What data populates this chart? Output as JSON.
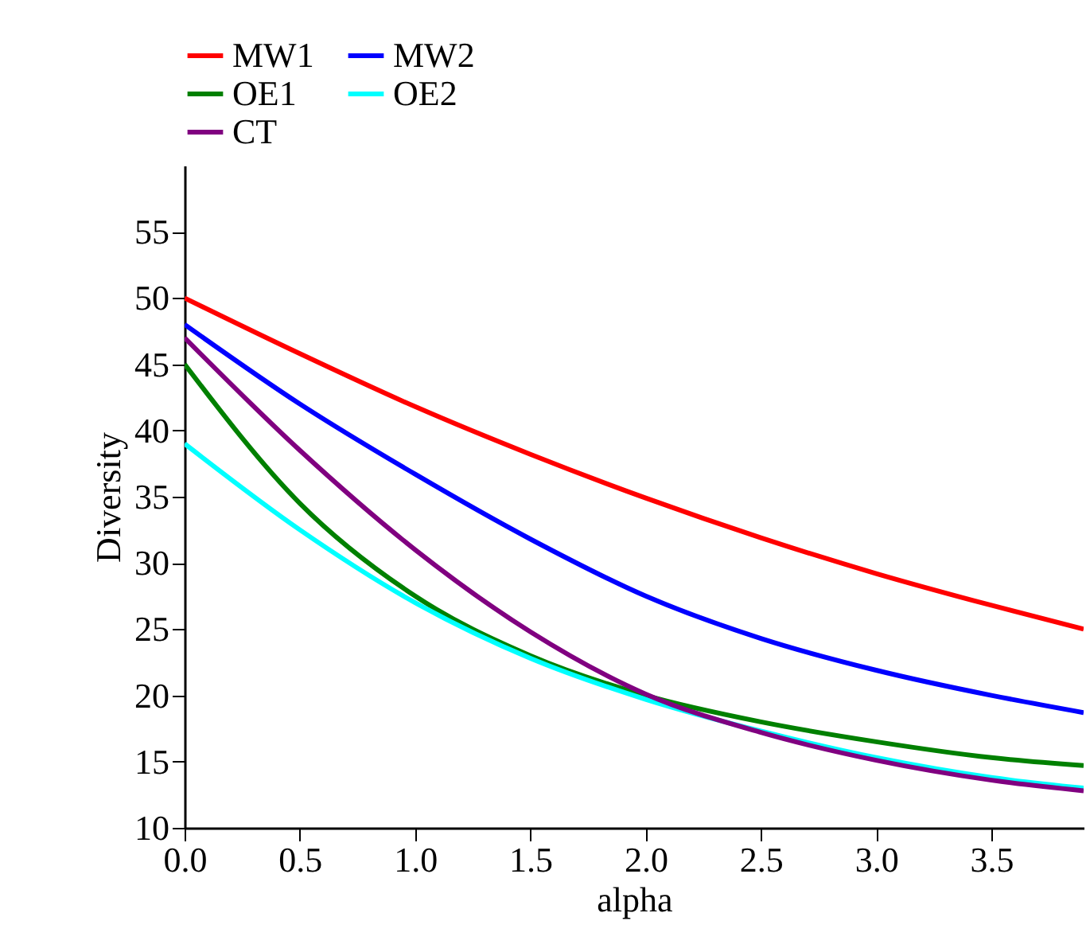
{
  "chart_data": {
    "type": "line",
    "xlabel": "alpha",
    "ylabel": "Diversity",
    "x": [
      0,
      0.5,
      1,
      1.5,
      2,
      2.5,
      3,
      3.5,
      3.9
    ],
    "xlim": [
      0,
      3.9
    ],
    "xticks": [
      {
        "value": 0,
        "label": "0.0"
      },
      {
        "value": 0.5,
        "label": "0.5"
      },
      {
        "value": 1,
        "label": "1.0"
      },
      {
        "value": 1.5,
        "label": "1.5"
      },
      {
        "value": 2,
        "label": "2.0"
      },
      {
        "value": 2.5,
        "label": "2.5"
      },
      {
        "value": 3,
        "label": "3.0"
      },
      {
        "value": 3.5,
        "label": "3.5"
      }
    ],
    "ylim": [
      10,
      60
    ],
    "yticks": [
      10,
      15,
      20,
      25,
      30,
      35,
      40,
      45,
      50,
      55
    ],
    "grid": false,
    "legend": "top left",
    "marker": "none",
    "line_style": "solid",
    "series": [
      {
        "name": "MW1",
        "color": "#ff0000",
        "values": [
          50,
          45.8,
          41.8,
          38.2,
          34.9,
          31.9,
          29.2,
          26.8,
          25
        ]
      },
      {
        "name": "MW2",
        "color": "#0000ff",
        "values": [
          48,
          42,
          36.7,
          31.8,
          27.5,
          24.3,
          21.9,
          20,
          18.7
        ]
      },
      {
        "name": "OE1",
        "color": "#008000",
        "values": [
          45,
          34.5,
          27.5,
          23,
          20,
          18,
          16.5,
          15.3,
          14.7
        ]
      },
      {
        "name": "OE2",
        "color": "#00ffff",
        "values": [
          39,
          32.5,
          27,
          22.8,
          19.7,
          17.3,
          15.3,
          13.8,
          13
        ]
      },
      {
        "name": "CT",
        "color": "#800080",
        "values": [
          47,
          38.5,
          31,
          24.8,
          20.1,
          17.2,
          15.1,
          13.6,
          12.8
        ]
      }
    ]
  }
}
